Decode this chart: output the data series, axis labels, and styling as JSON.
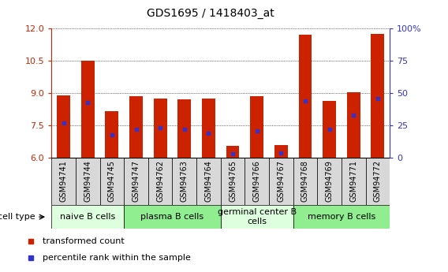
{
  "title": "GDS1695 / 1418403_at",
  "samples": [
    "GSM94741",
    "GSM94744",
    "GSM94745",
    "GSM94747",
    "GSM94762",
    "GSM94763",
    "GSM94764",
    "GSM94765",
    "GSM94766",
    "GSM94767",
    "GSM94768",
    "GSM94769",
    "GSM94771",
    "GSM94772"
  ],
  "transformed_count": [
    8.9,
    10.5,
    8.15,
    8.85,
    8.75,
    8.7,
    8.75,
    6.55,
    8.85,
    6.6,
    11.7,
    8.65,
    9.05,
    11.75
  ],
  "percentile_rank": [
    27,
    43,
    18,
    22,
    23,
    22,
    19,
    3,
    21,
    4,
    44,
    22,
    33,
    46
  ],
  "ymin": 6,
  "ymax": 12,
  "yticks": [
    6,
    7.5,
    9,
    10.5,
    12
  ],
  "right_yticks": [
    0,
    25,
    50,
    75,
    100
  ],
  "group_boundaries": [
    0,
    3,
    7,
    10,
    14
  ],
  "group_labels": [
    "naive B cells",
    "plasma B cells",
    "germinal center B\ncells",
    "memory B cells"
  ],
  "group_bg_colors": [
    "#DDFFDD",
    "#90EE90",
    "#DDFFDD",
    "#90EE90"
  ],
  "bar_color": "#CC2200",
  "dot_color": "#3333CC",
  "bar_width": 0.55,
  "cell_type_label": "cell type",
  "legend_items": [
    {
      "label": "transformed count",
      "color": "#CC2200"
    },
    {
      "label": "percentile rank within the sample",
      "color": "#3333CC"
    }
  ],
  "sample_box_color": "#D8D8D8",
  "title_fontsize": 10,
  "tick_label_fontsize": 7,
  "group_label_fontsize": 8
}
